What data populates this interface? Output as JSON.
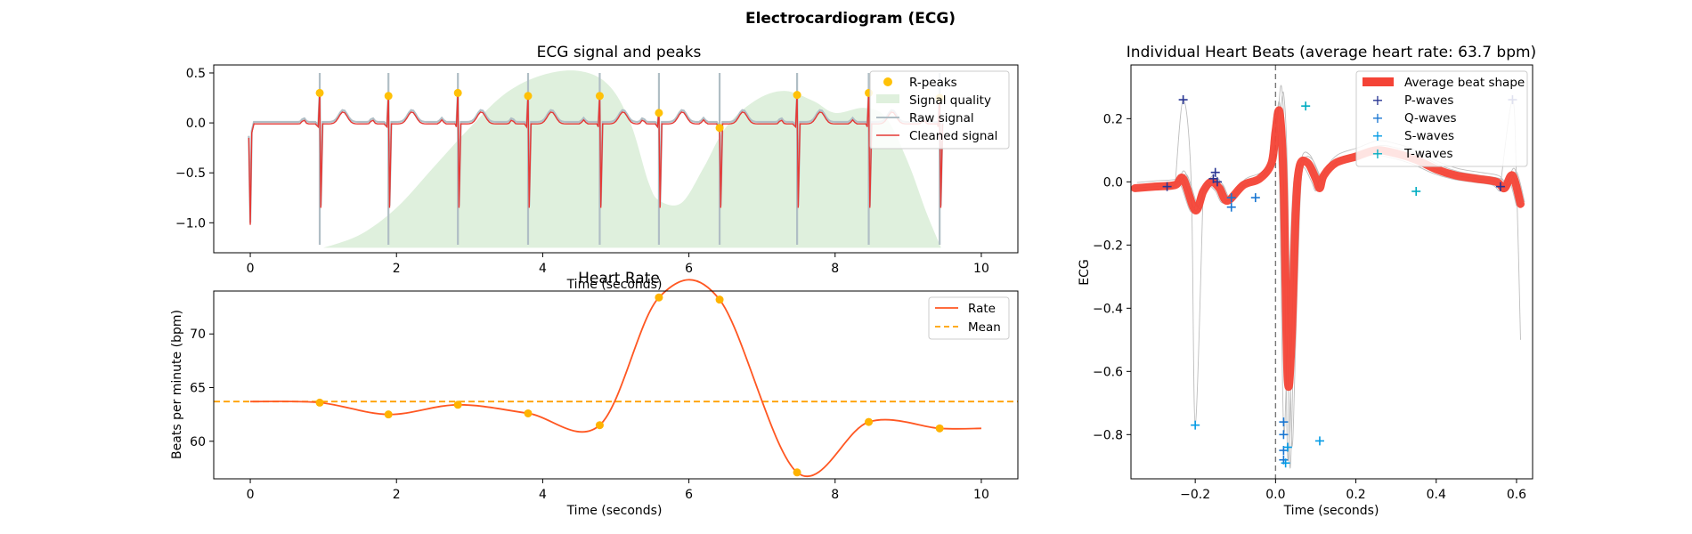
{
  "figure": {
    "title": "Electrocardiogram (ECG)"
  },
  "chart_data": [
    {
      "id": "ecg",
      "type": "line",
      "title": "ECG signal and peaks",
      "xlabel": "Time (seconds)",
      "ylabel": "",
      "xlim": [
        -0.5,
        10.5
      ],
      "ylim": [
        -1.3,
        0.58
      ],
      "xticks": [
        0,
        2,
        4,
        6,
        8,
        10
      ],
      "yticks": [
        0.5,
        0.0,
        -0.5,
        -1.0
      ],
      "ytick_labels": [
        "0.5",
        "0.0",
        "−0.5",
        "−1.0"
      ],
      "legend": [
        "R-peaks",
        "Signal quality",
        "Raw signal",
        "Cleaned signal"
      ],
      "legend_position": "top-right",
      "colors": {
        "rpeaks": "#FFC107",
        "quality": "#DFF0DD",
        "raw": "#B0BEC5",
        "clean": "#E53935"
      },
      "r_peaks": [
        {
          "x": 0.95,
          "y": 0.3
        },
        {
          "x": 1.89,
          "y": 0.27
        },
        {
          "x": 2.84,
          "y": 0.3
        },
        {
          "x": 3.8,
          "y": 0.27
        },
        {
          "x": 4.78,
          "y": 0.27
        },
        {
          "x": 5.59,
          "y": 0.1
        },
        {
          "x": 6.42,
          "y": -0.05
        },
        {
          "x": 7.48,
          "y": 0.28
        },
        {
          "x": 8.46,
          "y": 0.3
        },
        {
          "x": 9.43,
          "y": 0.25
        }
      ],
      "rpeak_trough": [
        -0.85,
        -0.85,
        -0.85,
        -0.85,
        -0.85,
        -0.85,
        -0.85,
        -0.85,
        -0.85,
        -0.85
      ],
      "signal_quality": [
        {
          "x": 1.0,
          "y": -1.25
        },
        {
          "x": 1.5,
          "y": -1.12
        },
        {
          "x": 2.0,
          "y": -0.85
        },
        {
          "x": 2.5,
          "y": -0.45
        },
        {
          "x": 3.0,
          "y": -0.05
        },
        {
          "x": 3.5,
          "y": 0.3
        },
        {
          "x": 4.0,
          "y": 0.48
        },
        {
          "x": 4.5,
          "y": 0.52
        },
        {
          "x": 4.9,
          "y": 0.38
        },
        {
          "x": 5.2,
          "y": 0.0
        },
        {
          "x": 5.45,
          "y": -0.6
        },
        {
          "x": 5.6,
          "y": -0.78
        },
        {
          "x": 5.9,
          "y": -0.8
        },
        {
          "x": 6.2,
          "y": -0.45
        },
        {
          "x": 6.5,
          "y": -0.05
        },
        {
          "x": 6.9,
          "y": 0.22
        },
        {
          "x": 7.3,
          "y": 0.32
        },
        {
          "x": 7.7,
          "y": 0.22
        },
        {
          "x": 8.0,
          "y": 0.1
        },
        {
          "x": 8.4,
          "y": 0.15
        },
        {
          "x": 8.7,
          "y": 0.05
        },
        {
          "x": 9.0,
          "y": -0.4
        },
        {
          "x": 9.25,
          "y": -0.9
        },
        {
          "x": 9.45,
          "y": -1.25
        }
      ]
    },
    {
      "id": "hr",
      "type": "line",
      "title": "Heart Rate",
      "xlabel": "Time (seconds)",
      "ylabel": "Beats per minute (bpm)",
      "xlim": [
        -0.5,
        10.5
      ],
      "ylim": [
        56.5,
        74.0
      ],
      "xticks": [
        0,
        2,
        4,
        6,
        8,
        10
      ],
      "yticks": [
        60,
        65,
        70
      ],
      "legend": [
        "Rate",
        "Mean"
      ],
      "legend_position": "top-right",
      "colors": {
        "rate": "#FF5722",
        "mean": "#FFA000",
        "markers": "#FFB300"
      },
      "mean": 63.7,
      "rate_points": [
        {
          "x": 0.0,
          "y": 63.7
        },
        {
          "x": 0.95,
          "y": 63.6
        },
        {
          "x": 1.89,
          "y": 62.5
        },
        {
          "x": 2.84,
          "y": 63.4
        },
        {
          "x": 3.8,
          "y": 62.6
        },
        {
          "x": 4.78,
          "y": 61.5
        },
        {
          "x": 5.59,
          "y": 73.4
        },
        {
          "x": 6.42,
          "y": 73.2
        },
        {
          "x": 7.48,
          "y": 57.1
        },
        {
          "x": 8.46,
          "y": 61.8
        },
        {
          "x": 9.43,
          "y": 61.2
        },
        {
          "x": 10.0,
          "y": 61.2
        }
      ]
    },
    {
      "id": "beats",
      "type": "line",
      "title": "Individual Heart Beats (average heart rate: 63.7 bpm)",
      "xlabel": "Time (seconds)",
      "ylabel": "ECG",
      "xlim": [
        -0.36,
        0.64
      ],
      "ylim": [
        -0.94,
        0.37
      ],
      "xticks": [
        -0.2,
        0.0,
        0.2,
        0.4,
        0.6
      ],
      "xtick_labels": [
        "−0.2",
        "0.0",
        "0.2",
        "0.4",
        "0.6"
      ],
      "yticks": [
        0.2,
        0.0,
        -0.2,
        -0.4,
        -0.6,
        -0.8
      ],
      "ytick_labels": [
        "0.2",
        "0.0",
        "−0.2",
        "−0.4",
        "−0.6",
        "−0.8"
      ],
      "legend": [
        "Average beat shape",
        "P-waves",
        "Q-waves",
        "S-waves",
        "T-waves"
      ],
      "legend_position": "top-right",
      "colors": {
        "average": "#F44336",
        "p": "#283593",
        "q": "#1976D2",
        "s": "#039BE5",
        "t": "#00ACC1",
        "beats": "#BDBDBD"
      },
      "average_beat": [
        {
          "x": -0.35,
          "y": -0.02
        },
        {
          "x": -0.3,
          "y": -0.015
        },
        {
          "x": -0.25,
          "y": -0.01
        },
        {
          "x": -0.23,
          "y": 0.01
        },
        {
          "x": -0.2,
          "y": -0.09
        },
        {
          "x": -0.18,
          "y": -0.03
        },
        {
          "x": -0.16,
          "y": 0.0
        },
        {
          "x": -0.14,
          "y": -0.02
        },
        {
          "x": -0.12,
          "y": -0.06
        },
        {
          "x": -0.08,
          "y": -0.01
        },
        {
          "x": -0.04,
          "y": 0.01
        },
        {
          "x": -0.01,
          "y": 0.06
        },
        {
          "x": 0.0,
          "y": 0.16
        },
        {
          "x": 0.01,
          "y": 0.22
        },
        {
          "x": 0.02,
          "y": 0.0
        },
        {
          "x": 0.03,
          "y": -0.62
        },
        {
          "x": 0.04,
          "y": -0.5
        },
        {
          "x": 0.05,
          "y": -0.1
        },
        {
          "x": 0.06,
          "y": 0.05
        },
        {
          "x": 0.08,
          "y": 0.06
        },
        {
          "x": 0.1,
          "y": 0.01
        },
        {
          "x": 0.11,
          "y": -0.02
        },
        {
          "x": 0.12,
          "y": 0.02
        },
        {
          "x": 0.15,
          "y": 0.06
        },
        {
          "x": 0.2,
          "y": 0.08
        },
        {
          "x": 0.25,
          "y": 0.1
        },
        {
          "x": 0.3,
          "y": 0.09
        },
        {
          "x": 0.35,
          "y": 0.07
        },
        {
          "x": 0.4,
          "y": 0.04
        },
        {
          "x": 0.45,
          "y": 0.02
        },
        {
          "x": 0.5,
          "y": 0.01
        },
        {
          "x": 0.55,
          "y": 0.0
        },
        {
          "x": 0.57,
          "y": -0.02
        },
        {
          "x": 0.59,
          "y": 0.02
        },
        {
          "x": 0.61,
          "y": -0.07
        }
      ],
      "p_waves": [
        {
          "x": -0.27,
          "y": -0.015
        },
        {
          "x": -0.23,
          "y": 0.26
        },
        {
          "x": -0.155,
          "y": 0.01
        },
        {
          "x": -0.15,
          "y": 0.03
        },
        {
          "x": -0.145,
          "y": 0.0
        },
        {
          "x": 0.56,
          "y": -0.015
        },
        {
          "x": 0.59,
          "y": 0.26
        }
      ],
      "q_waves": [
        {
          "x": -0.11,
          "y": -0.05
        },
        {
          "x": -0.11,
          "y": -0.08
        },
        {
          "x": -0.05,
          "y": -0.05
        },
        {
          "x": 0.02,
          "y": -0.76
        },
        {
          "x": 0.02,
          "y": -0.8
        },
        {
          "x": 0.02,
          "y": -0.85
        },
        {
          "x": 0.02,
          "y": -0.88
        }
      ],
      "s_waves": [
        {
          "x": -0.2,
          "y": -0.77
        },
        {
          "x": 0.03,
          "y": -0.84
        },
        {
          "x": 0.025,
          "y": -0.89
        },
        {
          "x": 0.11,
          "y": -0.82
        }
      ],
      "t_waves": [
        {
          "x": 0.075,
          "y": 0.24
        },
        {
          "x": 0.35,
          "y": -0.03
        }
      ]
    }
  ]
}
